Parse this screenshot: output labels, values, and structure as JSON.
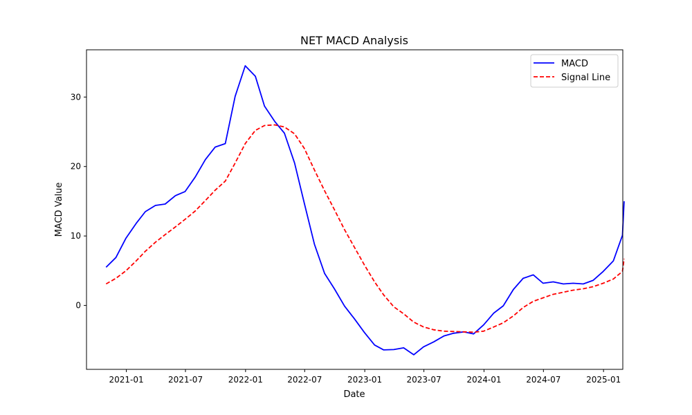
{
  "chart_data": {
    "type": "line",
    "title": "NET MACD Analysis",
    "xlabel": "Date",
    "ylabel": "MACD Value",
    "x_type": "date",
    "xlim": [
      "2020-09-01",
      "2025-03-01"
    ],
    "ylim": [
      -9.2,
      36.8
    ],
    "x_ticks": [
      "2021-01-01",
      "2021-07-01",
      "2022-01-01",
      "2022-07-01",
      "2023-01-01",
      "2023-07-01",
      "2024-01-01",
      "2024-07-01",
      "2025-01-01"
    ],
    "x_tick_labels": [
      "2021-01",
      "2021-07",
      "2022-01",
      "2022-07",
      "2023-01",
      "2023-07",
      "2024-01",
      "2024-07",
      "2025-01"
    ],
    "y_ticks": [
      0,
      10,
      20,
      30
    ],
    "y_tick_labels": [
      "0",
      "10",
      "20",
      "30"
    ],
    "grid": false,
    "legend_position": "top-right",
    "series": [
      {
        "name": "MACD",
        "color": "#0000ff",
        "style": "solid",
        "points": [
          [
            "2020-10-31",
            5.5
          ],
          [
            "2020-11-30",
            6.9
          ],
          [
            "2020-12-31",
            9.7
          ],
          [
            "2021-01-31",
            11.8
          ],
          [
            "2021-02-28",
            13.5
          ],
          [
            "2021-03-31",
            14.4
          ],
          [
            "2021-04-30",
            14.6
          ],
          [
            "2021-05-31",
            15.8
          ],
          [
            "2021-06-30",
            16.4
          ],
          [
            "2021-07-31",
            18.5
          ],
          [
            "2021-08-31",
            21.0
          ],
          [
            "2021-09-30",
            22.8
          ],
          [
            "2021-10-31",
            23.3
          ],
          [
            "2021-11-30",
            30.1
          ],
          [
            "2021-12-31",
            34.5
          ],
          [
            "2022-01-31",
            33.0
          ],
          [
            "2022-02-28",
            28.7
          ],
          [
            "2022-03-31",
            26.5
          ],
          [
            "2022-04-30",
            24.8
          ],
          [
            "2022-05-31",
            20.5
          ],
          [
            "2022-06-30",
            14.7
          ],
          [
            "2022-07-31",
            8.8
          ],
          [
            "2022-08-31",
            4.6
          ],
          [
            "2022-09-30",
            2.4
          ],
          [
            "2022-10-31",
            -0.1
          ],
          [
            "2022-11-30",
            -1.9
          ],
          [
            "2022-12-31",
            -3.9
          ],
          [
            "2023-01-31",
            -5.7
          ],
          [
            "2023-02-28",
            -6.4
          ],
          [
            "2023-03-31",
            -6.35
          ],
          [
            "2023-04-30",
            -6.1
          ],
          [
            "2023-05-31",
            -7.1
          ],
          [
            "2023-06-30",
            -5.95
          ],
          [
            "2023-07-31",
            -5.25
          ],
          [
            "2023-08-31",
            -4.4
          ],
          [
            "2023-09-30",
            -4.0
          ],
          [
            "2023-10-31",
            -3.8
          ],
          [
            "2023-11-30",
            -4.1
          ],
          [
            "2023-12-31",
            -2.8
          ],
          [
            "2024-01-31",
            -1.1
          ],
          [
            "2024-02-29",
            -0.05
          ],
          [
            "2024-03-31",
            2.3
          ],
          [
            "2024-04-30",
            3.9
          ],
          [
            "2024-05-31",
            4.4
          ],
          [
            "2024-06-30",
            3.2
          ],
          [
            "2024-07-31",
            3.4
          ],
          [
            "2024-08-31",
            3.1
          ],
          [
            "2024-09-30",
            3.2
          ],
          [
            "2024-10-31",
            3.1
          ],
          [
            "2024-11-30",
            3.6
          ],
          [
            "2024-12-31",
            4.9
          ],
          [
            "2025-01-31",
            6.4
          ],
          [
            "2025-02-28",
            10.1
          ],
          [
            "2025-03-05",
            15.0
          ]
        ]
      },
      {
        "name": "Signal Line",
        "color": "#ff0000",
        "style": "dashed",
        "points": [
          [
            "2020-10-31",
            3.1
          ],
          [
            "2020-11-30",
            3.9
          ],
          [
            "2020-12-31",
            5.0
          ],
          [
            "2021-01-31",
            6.4
          ],
          [
            "2021-02-28",
            7.8
          ],
          [
            "2021-03-31",
            9.1
          ],
          [
            "2021-04-30",
            10.2
          ],
          [
            "2021-05-31",
            11.3
          ],
          [
            "2021-06-30",
            12.4
          ],
          [
            "2021-07-31",
            13.6
          ],
          [
            "2021-08-31",
            15.1
          ],
          [
            "2021-09-30",
            16.6
          ],
          [
            "2021-10-31",
            17.9
          ],
          [
            "2021-11-30",
            20.5
          ],
          [
            "2021-12-31",
            23.3
          ],
          [
            "2022-01-31",
            25.2
          ],
          [
            "2022-02-28",
            25.9
          ],
          [
            "2022-03-31",
            26.0
          ],
          [
            "2022-04-30",
            25.7
          ],
          [
            "2022-05-31",
            24.7
          ],
          [
            "2022-06-30",
            22.6
          ],
          [
            "2022-07-31",
            19.5
          ],
          [
            "2022-08-31",
            16.5
          ],
          [
            "2022-09-30",
            13.8
          ],
          [
            "2022-10-31",
            10.9
          ],
          [
            "2022-11-30",
            8.4
          ],
          [
            "2022-12-31",
            5.8
          ],
          [
            "2023-01-31",
            3.4
          ],
          [
            "2023-02-28",
            1.5
          ],
          [
            "2023-03-31",
            -0.2
          ],
          [
            "2023-04-30",
            -1.2
          ],
          [
            "2023-05-31",
            -2.4
          ],
          [
            "2023-06-30",
            -3.1
          ],
          [
            "2023-07-31",
            -3.5
          ],
          [
            "2023-08-31",
            -3.7
          ],
          [
            "2023-09-30",
            -3.75
          ],
          [
            "2023-10-31",
            -3.8
          ],
          [
            "2023-11-30",
            -3.85
          ],
          [
            "2023-12-31",
            -3.7
          ],
          [
            "2024-01-31",
            -3.1
          ],
          [
            "2024-02-29",
            -2.5
          ],
          [
            "2024-03-31",
            -1.5
          ],
          [
            "2024-04-30",
            -0.3
          ],
          [
            "2024-05-31",
            0.6
          ],
          [
            "2024-06-30",
            1.1
          ],
          [
            "2024-07-31",
            1.6
          ],
          [
            "2024-08-31",
            1.9
          ],
          [
            "2024-09-30",
            2.2
          ],
          [
            "2024-10-31",
            2.4
          ],
          [
            "2024-11-30",
            2.7
          ],
          [
            "2024-12-31",
            3.2
          ],
          [
            "2025-01-31",
            3.8
          ],
          [
            "2025-02-28",
            4.9
          ],
          [
            "2025-03-05",
            6.7
          ]
        ]
      }
    ]
  }
}
